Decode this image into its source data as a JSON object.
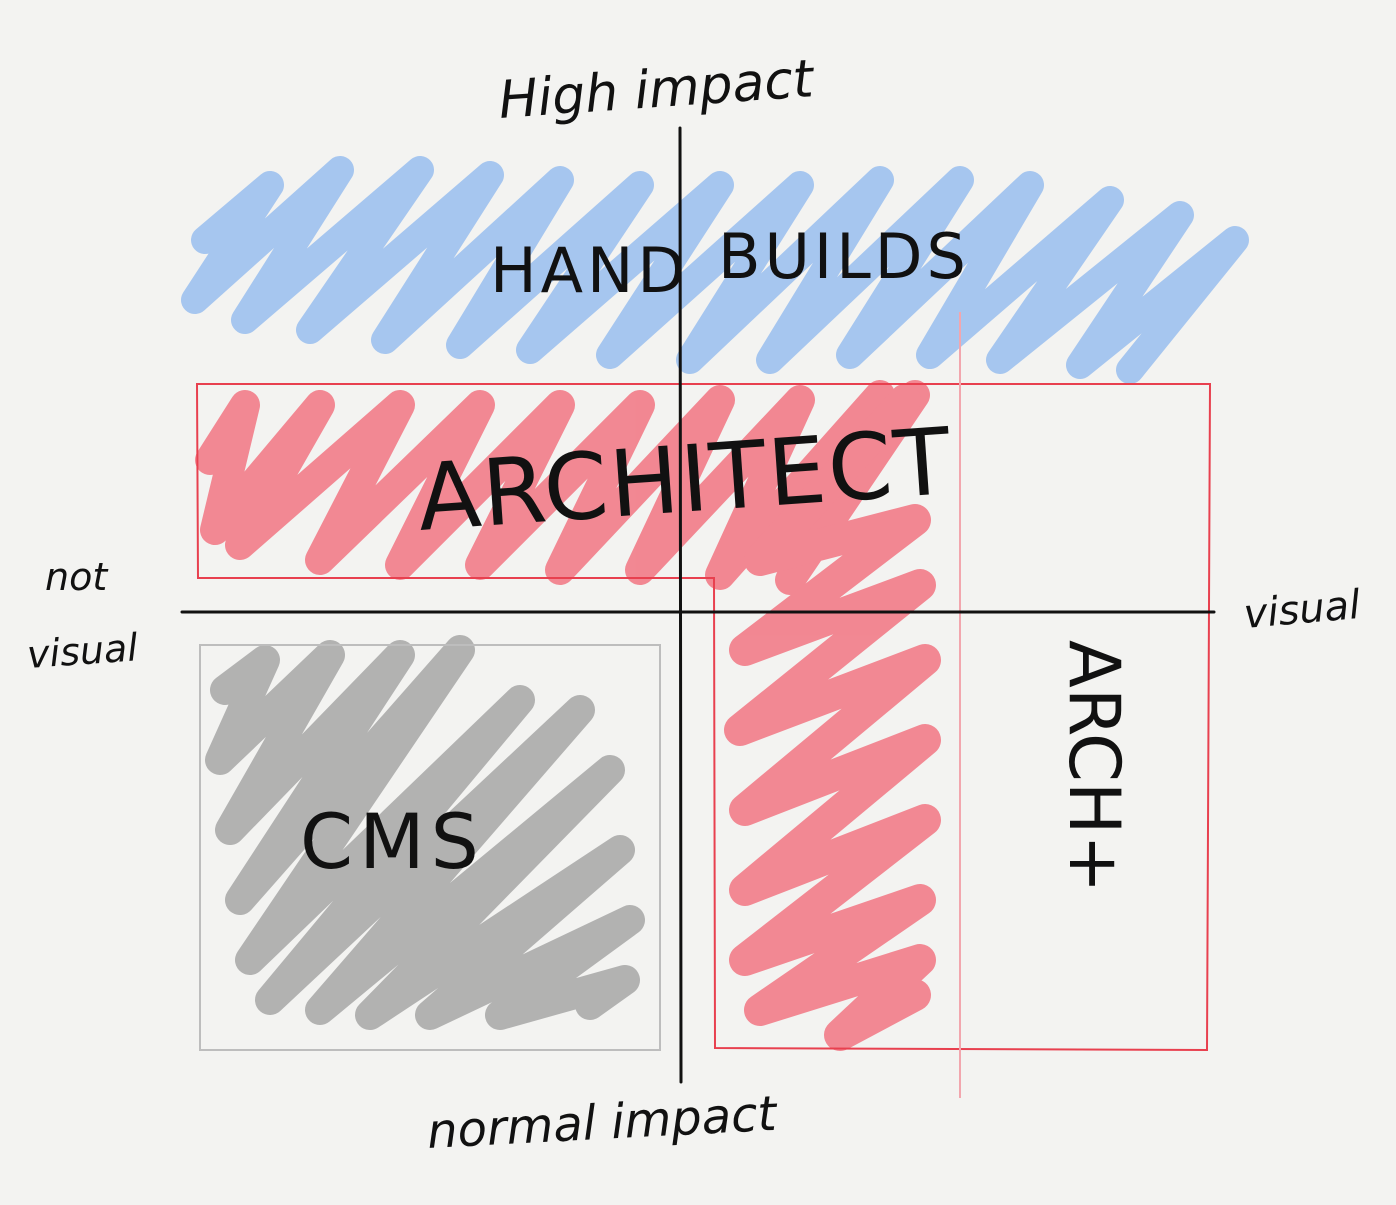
{
  "axes": {
    "top_label": "High impact",
    "bottom_label": "normal impact",
    "left_label_line1": "not",
    "left_label_line2": "visual",
    "right_label": "visual"
  },
  "regions": {
    "hand_builds": {
      "label_left": "HAND",
      "label_right": "BUILDS",
      "color": "#8fb8ee"
    },
    "architect": {
      "label": "ARCHITECT",
      "color": "#f2707e",
      "outline_color": "#e8404f"
    },
    "architect_plus": {
      "label": "ARCH+",
      "color": "#e8404f"
    },
    "cms": {
      "label": "CMS",
      "color": "#a6a6a6",
      "outline_color": "#bdbdbd"
    }
  },
  "colors": {
    "paper": "#f3f3f1",
    "ink": "#111111",
    "faint_divider": "#f2a6ae"
  }
}
